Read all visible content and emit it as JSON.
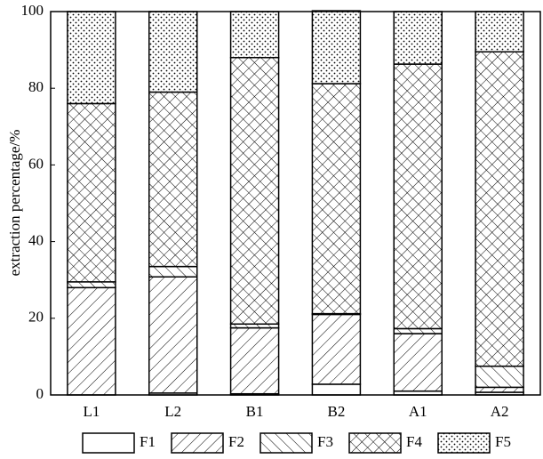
{
  "chart_data": {
    "type": "stacked-bar",
    "y_label": "extraction percentage/%",
    "categories": [
      "L1",
      "L2",
      "B1",
      "B2",
      "A1",
      "A2"
    ],
    "series": [
      {
        "name": "F1",
        "color": "#ffffff",
        "pattern": "none",
        "values": [
          0,
          0.5,
          0.3,
          2.8,
          1,
          0.7
        ]
      },
      {
        "name": "F2",
        "color": "#ffffff",
        "pattern": "forward",
        "values": [
          28,
          30.3,
          17.2,
          18.2,
          15,
          1.3
        ]
      },
      {
        "name": "F3",
        "color": "#ffffff",
        "pattern": "backward",
        "values": [
          1.5,
          2.7,
          1,
          0.2,
          1.3,
          5.5
        ]
      },
      {
        "name": "F4",
        "color": "#ffffff",
        "pattern": "crosshatch",
        "values": [
          46.5,
          45.5,
          69.5,
          60,
          69,
          82
        ]
      },
      {
        "name": "F5",
        "color": "#ffffff",
        "pattern": "dots",
        "values": [
          24,
          21,
          12,
          19,
          13.7,
          10.5
        ]
      }
    ],
    "ylim": [
      0,
      100
    ],
    "yticks": [
      0,
      20,
      40,
      60,
      80,
      100
    ]
  }
}
